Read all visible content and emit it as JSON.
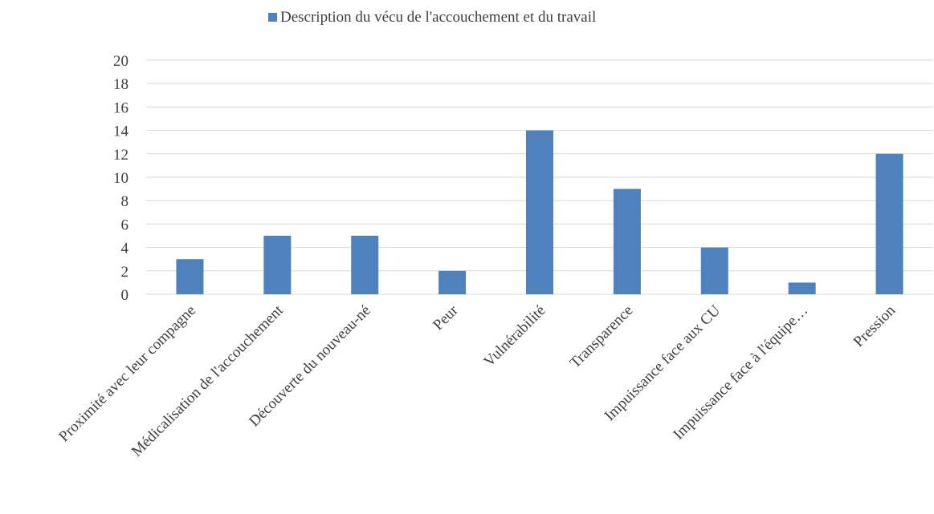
{
  "chart_data": {
    "type": "bar",
    "categories": [
      "Proximité avec leur compagne",
      "Médicalisation de l'accouchement",
      "Découverte du nouveau-né",
      "Peur",
      "Vulnérabilité",
      "Transparence",
      "Impuissance face aux CU",
      "Impuissance face à l'équipe…",
      "Pression"
    ],
    "series": [
      {
        "name": "Description du vécu de l'accouchement et du travail",
        "color": "#4f81bd",
        "values": [
          3,
          5,
          5,
          2,
          14,
          9,
          4,
          1,
          12
        ]
      }
    ],
    "ylim": [
      0,
      20
    ],
    "yticks": [
      0,
      2,
      4,
      6,
      8,
      10,
      12,
      14,
      16,
      18,
      20
    ],
    "grid": true,
    "legend": "top"
  }
}
